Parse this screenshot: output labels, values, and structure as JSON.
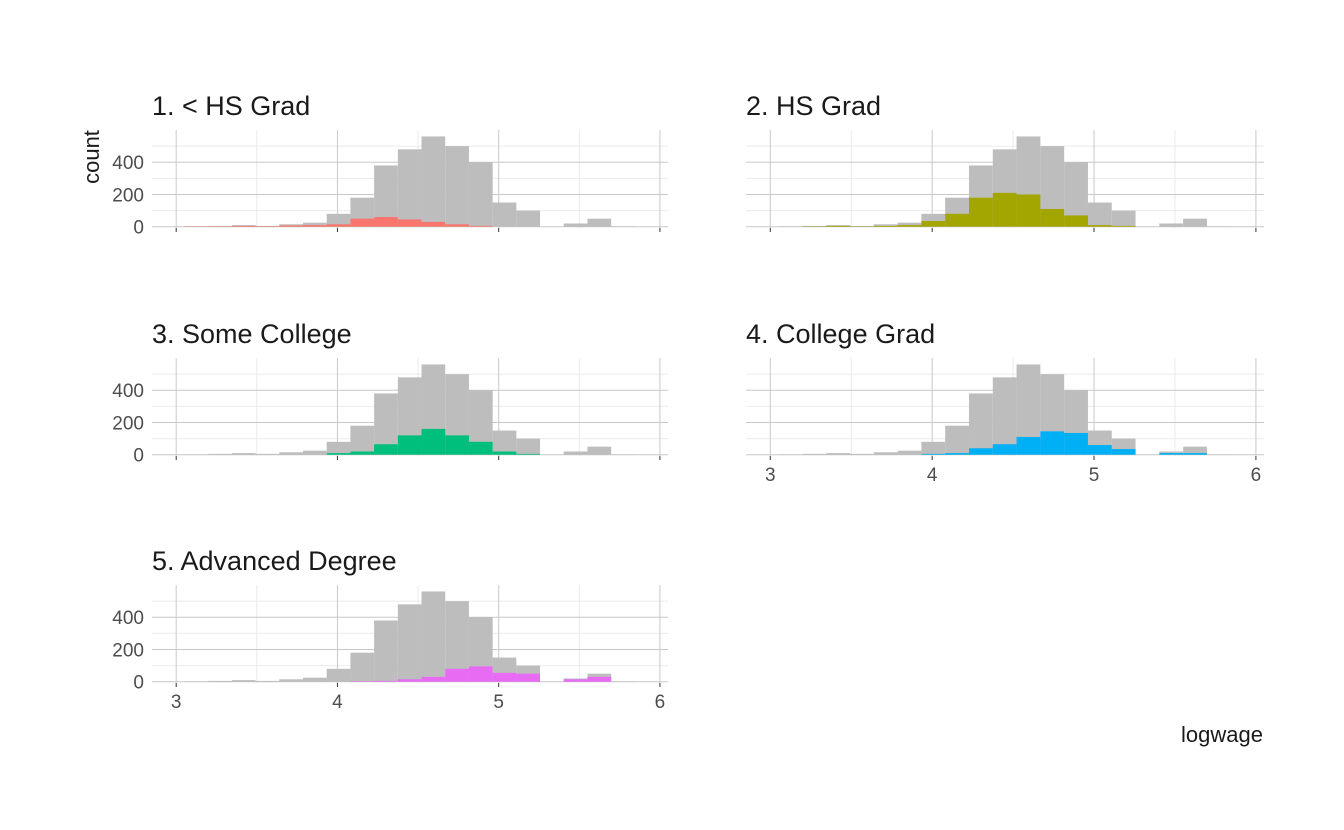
{
  "chart_data": {
    "type": "bar",
    "subtype": "faceted histogram",
    "xlabel": "logwage",
    "ylabel": "count",
    "xlim": [
      2.85,
      6.05
    ],
    "ylim": [
      -8,
      600
    ],
    "x_ticks": [
      "3",
      "4",
      "5",
      "6"
    ],
    "y_ticks": [
      "0",
      "200",
      "400"
    ],
    "bin_width": 0.147,
    "bin_centers": [
      3.125,
      3.272,
      3.419,
      3.566,
      3.713,
      3.86,
      4.007,
      4.154,
      4.301,
      4.448,
      4.595,
      4.742,
      4.889,
      5.036,
      5.183,
      5.33,
      5.477,
      5.624,
      5.771
    ],
    "background_series": {
      "name": "all",
      "color": "#bdbdbd",
      "values": [
        2,
        5,
        10,
        5,
        15,
        25,
        80,
        180,
        380,
        480,
        560,
        500,
        400,
        150,
        100,
        0,
        20,
        50,
        2
      ]
    },
    "facets": [
      {
        "title": "1. < HS Grad",
        "color": "#F8766D",
        "values": [
          2,
          2,
          5,
          3,
          8,
          10,
          15,
          50,
          60,
          45,
          30,
          15,
          5,
          0,
          0,
          0,
          0,
          0,
          0
        ]
      },
      {
        "title": "2. HS Grad",
        "color": "#A3A500",
        "values": [
          0,
          2,
          5,
          2,
          5,
          10,
          35,
          80,
          180,
          210,
          200,
          110,
          70,
          10,
          5,
          0,
          0,
          0,
          0
        ]
      },
      {
        "title": "3. Some College",
        "color": "#00BF7D",
        "values": [
          0,
          0,
          0,
          0,
          0,
          0,
          10,
          20,
          65,
          120,
          160,
          120,
          80,
          20,
          5,
          0,
          0,
          0,
          0
        ]
      },
      {
        "title": "4. College Grad",
        "color": "#00B0F6",
        "values": [
          0,
          0,
          0,
          0,
          0,
          0,
          5,
          10,
          40,
          65,
          110,
          145,
          135,
          60,
          35,
          0,
          10,
          10,
          0
        ]
      },
      {
        "title": "5. Advanced Degree",
        "color": "#E76BF3",
        "values": [
          0,
          0,
          0,
          0,
          0,
          0,
          0,
          3,
          5,
          15,
          30,
          80,
          95,
          55,
          50,
          0,
          15,
          30,
          0
        ]
      }
    ]
  }
}
